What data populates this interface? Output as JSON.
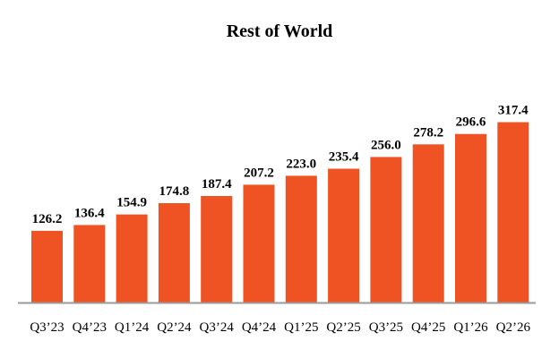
{
  "chart_data": {
    "type": "bar",
    "title": "Rest of World",
    "xlabel": "",
    "ylabel": "",
    "categories": [
      "Q3’23",
      "Q4’23",
      "Q1’24",
      "Q2’24",
      "Q3’24",
      "Q4’24",
      "Q1’25",
      "Q2’25",
      "Q3’25",
      "Q4’25",
      "Q1’26",
      "Q2’26"
    ],
    "values": [
      126.2,
      136.4,
      154.9,
      174.8,
      187.4,
      207.2,
      223.0,
      235.4,
      256.0,
      278.2,
      296.6,
      317.4
    ],
    "value_labels": [
      "126.2",
      "136.4",
      "154.9",
      "174.8",
      "187.4",
      "207.2",
      "223.0",
      "235.4",
      "256.0",
      "278.2",
      "296.6",
      "317.4"
    ],
    "ylim": [
      0,
      320
    ],
    "grid": false,
    "legend": "none",
    "bar_color": "#f05323",
    "axis_color": "#9a9a9a"
  }
}
